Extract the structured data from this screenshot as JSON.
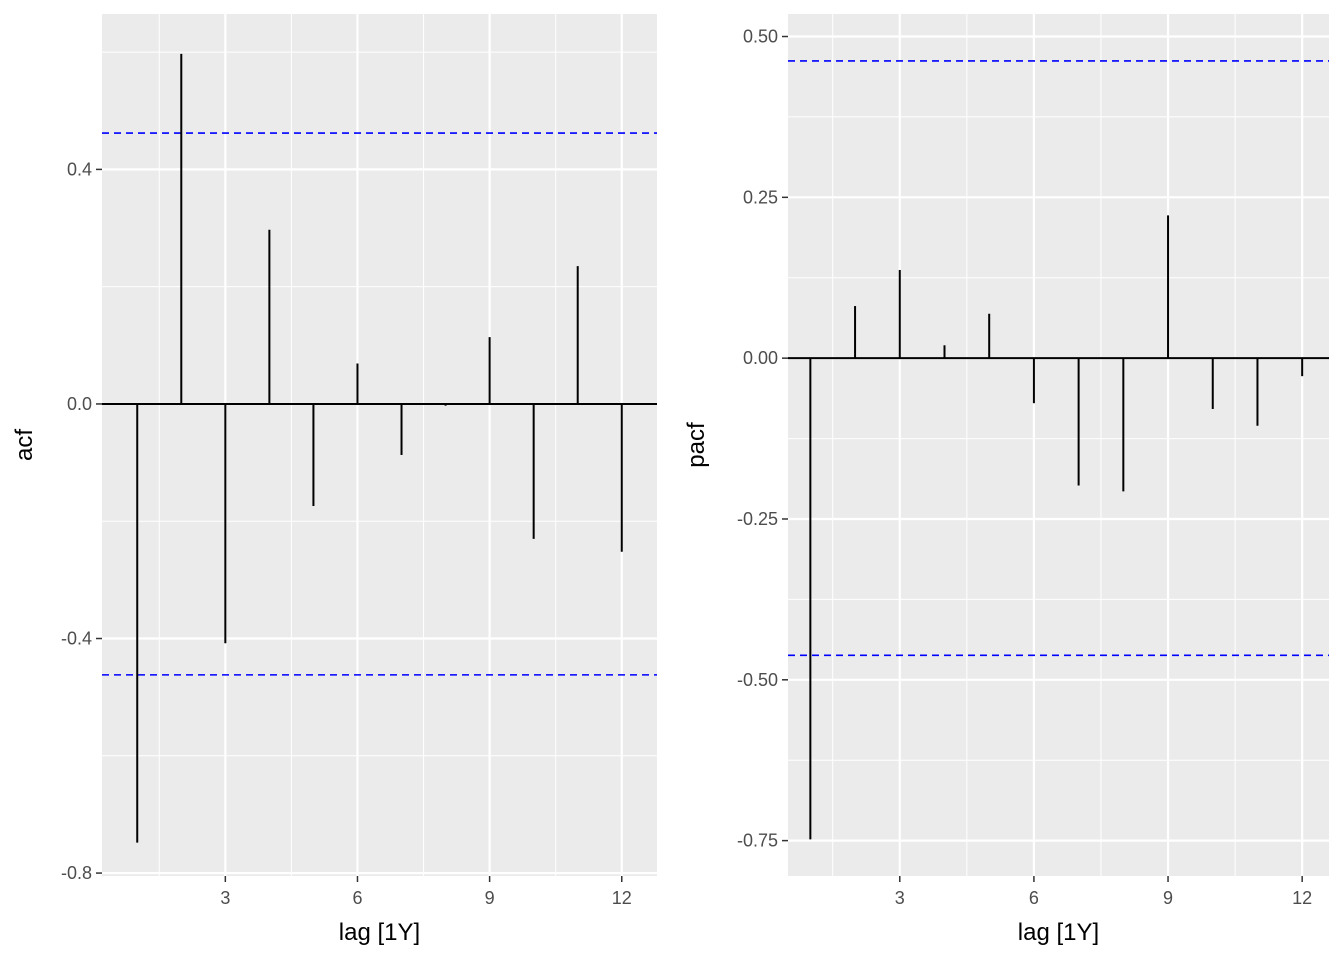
{
  "chart_data": [
    {
      "type": "bar",
      "name": "acf",
      "xlabel": "lag [1Y]",
      "ylabel": "acf",
      "x": [
        1,
        2,
        3,
        4,
        5,
        6,
        7,
        8,
        9,
        10,
        11,
        12
      ],
      "values": [
        -0.748,
        0.597,
        -0.408,
        0.297,
        -0.174,
        0.069,
        -0.087,
        -0.003,
        0.114,
        -0.23,
        0.235,
        -0.252
      ],
      "confidence_bounds": [
        -0.462,
        0.462
      ],
      "xlim": [
        0.2,
        12.8
      ],
      "ylim": [
        -0.805,
        0.665
      ],
      "x_ticks": [
        3,
        6,
        9,
        12
      ],
      "x_tick_labels": [
        "3",
        "6",
        "9",
        "12"
      ],
      "y_ticks": [
        -0.8,
        -0.4,
        0.0,
        0.4
      ],
      "y_tick_labels": [
        "-0.8",
        "-0.4",
        "0.0",
        "0.4"
      ],
      "grid": true,
      "colors": {
        "panel": "#ebebeb",
        "grid": "#ffffff",
        "bar": "#000000",
        "bounds": "#0000ff"
      }
    },
    {
      "type": "bar",
      "name": "pacf",
      "xlabel": "lag [1Y]",
      "ylabel": "pacf",
      "x": [
        1,
        2,
        3,
        4,
        5,
        6,
        7,
        8,
        9,
        10,
        11,
        12
      ],
      "values": [
        -0.748,
        0.081,
        0.137,
        0.02,
        0.069,
        -0.07,
        -0.198,
        -0.207,
        0.222,
        -0.079,
        -0.105,
        -0.028
      ],
      "confidence_bounds": [
        -0.462,
        0.462
      ],
      "xlim": [
        0.5,
        12.6
      ],
      "ylim": [
        -0.805,
        0.535
      ],
      "x_ticks": [
        3,
        6,
        9,
        12
      ],
      "x_tick_labels": [
        "3",
        "6",
        "9",
        "12"
      ],
      "y_ticks": [
        -0.75,
        -0.5,
        -0.25,
        0.0,
        0.25,
        0.5
      ],
      "y_tick_labels": [
        "-0.75",
        "-0.50",
        "-0.25",
        "0.00",
        "0.25",
        "0.50"
      ],
      "grid": true,
      "colors": {
        "panel": "#ebebeb",
        "grid": "#ffffff",
        "bar": "#000000",
        "bounds": "#0000ff"
      }
    }
  ]
}
